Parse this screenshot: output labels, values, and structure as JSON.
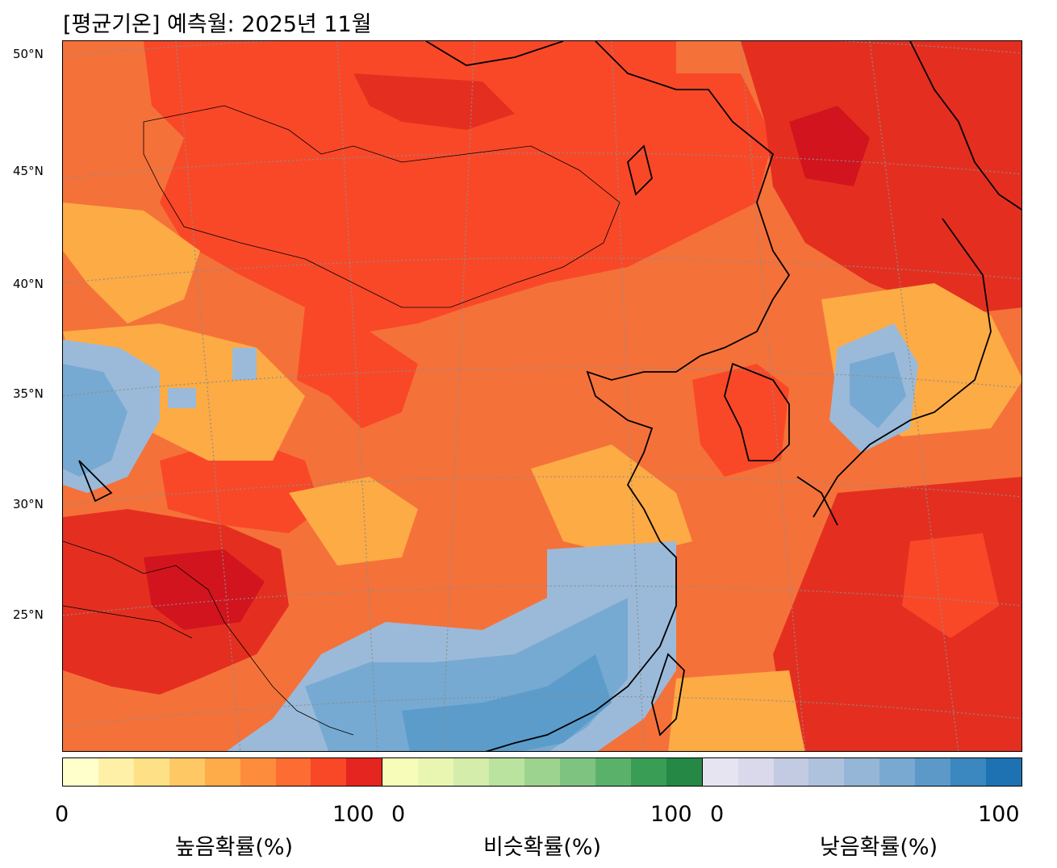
{
  "title": "[평균기온] 예측월: 2025년 11월",
  "latitude_labels": [
    "50°N",
    "45°N",
    "40°N",
    "35°N",
    "30°N",
    "25°N"
  ],
  "colorbars": [
    {
      "label": "높음확률(%)",
      "min": "0",
      "max": "100",
      "colors": [
        "#ffffcc",
        "#fff0a8",
        "#fee087",
        "#fec965",
        "#feab49",
        "#fd8d3c",
        "#fc6c33",
        "#f94828",
        "#e42520"
      ]
    },
    {
      "label": "비슷확률(%)",
      "min": "0",
      "max": "100",
      "colors": [
        "#f7fcb9",
        "#e9f6b2",
        "#d4edab",
        "#bae3a0",
        "#9cd38f",
        "#7ec480",
        "#5ab26a",
        "#3a9d55",
        "#268845"
      ]
    },
    {
      "label": "낮음확률(%)",
      "min": "0",
      "max": "100",
      "colors": [
        "#e7e4f1",
        "#d9d9eb",
        "#c3cbe2",
        "#aec2dd",
        "#95b6d7",
        "#79a9d1",
        "#5c99c8",
        "#3b87bf",
        "#1f72b1"
      ]
    }
  ],
  "map_colors": {
    "base": "#f5713a",
    "high_dark": "#e42f20",
    "high_darker": "#d2141e",
    "high_red": "#f94828",
    "high_light": "#fdab45",
    "low_light": "#9bbad9",
    "low_mid": "#76aad2",
    "low_dark": "#5b9cca",
    "land_line": "#000000",
    "grid_line": "#8c8c8c"
  }
}
